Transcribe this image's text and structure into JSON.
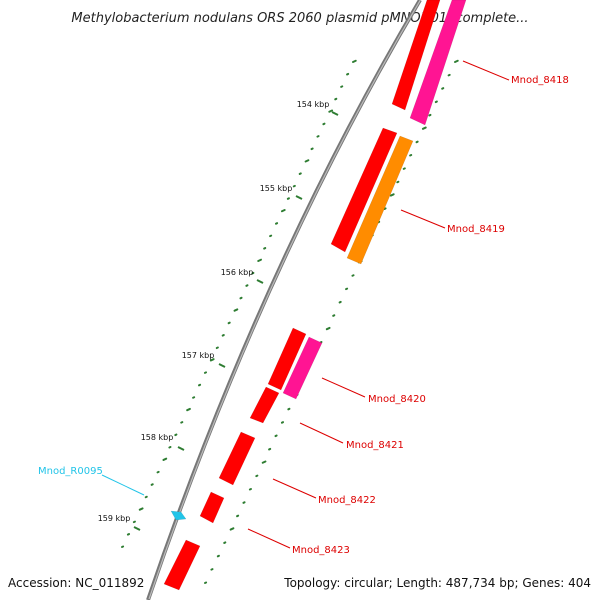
{
  "title": "Methylobacterium nodulans ORS 2060 plasmid pMNOD01, complete...",
  "accession": "Accession: NC_011892",
  "topology": "Topology: circular; Length: 487,734 bp; Genes: 404",
  "ticks": [
    "154 kbp",
    "155 kbp",
    "156 kbp",
    "157 kbp",
    "158 kbp",
    "159 kbp"
  ],
  "genes": [
    {
      "label": "Mnod_8418",
      "color": "#dd0000"
    },
    {
      "label": "Mnod_8419",
      "color": "#dd0000"
    },
    {
      "label": "Mnod_8420",
      "color": "#dd0000"
    },
    {
      "label": "Mnod_8421",
      "color": "#dd0000"
    },
    {
      "label": "Mnod_8422",
      "color": "#dd0000"
    },
    {
      "label": "Mnod_8423",
      "color": "#dd0000"
    },
    {
      "label": "Mnod_R0095",
      "color": "#22c4e8"
    }
  ],
  "colors": {
    "gene_red": "#ff0000",
    "gene_pink": "#ff1493",
    "gene_orange": "#ff8c00",
    "rna_cyan": "#22c4e8",
    "backbone": "#777777",
    "gc_dots": "#2e7d32",
    "label_red": "#dd0000",
    "label_cyan": "#22c4e8"
  }
}
